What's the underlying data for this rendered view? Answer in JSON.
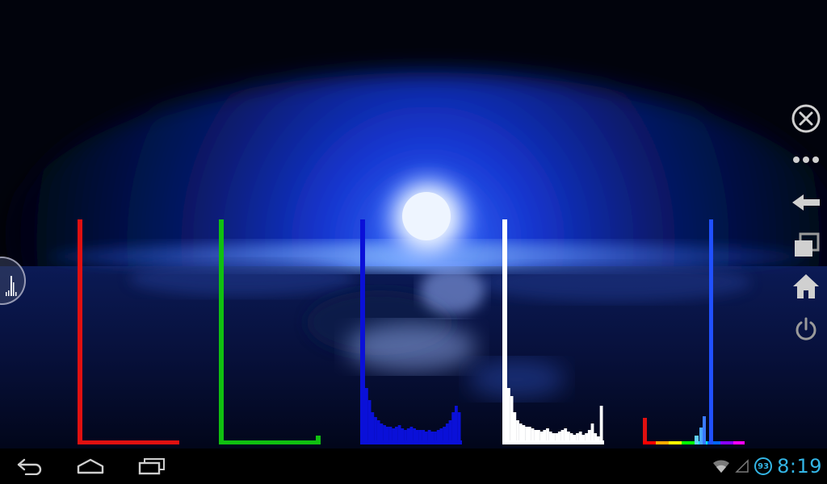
{
  "photo": {
    "subject": "moonlit-sea-scene"
  },
  "histograms": [
    {
      "channel": "red",
      "color": "#e01010"
    },
    {
      "channel": "green",
      "color": "#10c010"
    },
    {
      "channel": "blue",
      "color": "#0a10d8"
    },
    {
      "channel": "luminance",
      "color": "#ffffff"
    },
    {
      "channel": "hue",
      "color": "#2050ff"
    }
  ],
  "controls": {
    "close_icon": "close-circle-icon",
    "more_icon": "overflow-dots-icon",
    "back_icon": "arrow-left-icon",
    "windows_icon": "recent-windows-icon",
    "home_icon": "home-icon",
    "power_icon": "power-icon"
  },
  "navbar": {
    "back_icon": "nav-back-icon",
    "home_icon": "nav-home-icon",
    "recents_icon": "nav-recents-icon"
  },
  "status": {
    "time": "8:19",
    "battery": "93"
  },
  "colors": {
    "clock": "#33b5e5",
    "sky_glow": "#1a4dff",
    "moon": "#e8f2ff"
  }
}
